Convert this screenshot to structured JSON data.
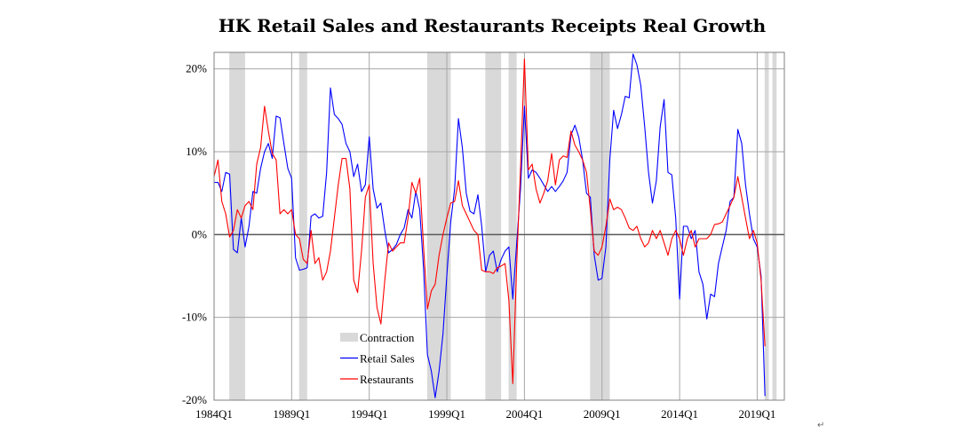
{
  "chart_data": {
    "type": "line",
    "title": "HK Retail Sales and Restaurants Receipts Real Growth",
    "xlabel": "",
    "ylabel": "",
    "x_tick_labels": [
      "1984Q1",
      "1989Q1",
      "1994Q1",
      "1999Q1",
      "2004Q1",
      "2009Q1",
      "2014Q1",
      "2019Q1"
    ],
    "y_tick_labels": [
      "20%",
      "10%",
      "0%",
      "-10%",
      "-20%"
    ],
    "ylim": [
      -20,
      22
    ],
    "grid": true,
    "legend_position": "bottom-left",
    "contraction_label": "Contraction",
    "contraction_periods": [
      [
        "1985Q1",
        "1985Q4"
      ],
      [
        "1989Q3",
        "1989Q4"
      ],
      [
        "1997Q4",
        "1999Q1"
      ],
      [
        "2001Q3",
        "2002Q2"
      ],
      [
        "2003Q1",
        "2003Q2"
      ],
      [
        "2008Q2",
        "2009Q2"
      ],
      [
        "2019Q3",
        "2019Q3"
      ],
      [
        "2020Q1",
        "2020Q1"
      ]
    ],
    "series": [
      {
        "name": "Retail Sales",
        "color": "#0000ff",
        "points": [
          [
            "1984Q1",
            6.3
          ],
          [
            "1984Q2",
            6.3
          ],
          [
            "1984Q3",
            5.2
          ],
          [
            "1984Q4",
            7.5
          ],
          [
            "1985Q1",
            7.3
          ],
          [
            "1985Q2",
            -1.8
          ],
          [
            "1985Q3",
            -2.2
          ],
          [
            "1985Q4",
            2.0
          ],
          [
            "1986Q1",
            -1.5
          ],
          [
            "1986Q2",
            1.0
          ],
          [
            "1986Q3",
            5.2
          ],
          [
            "1986Q4",
            5.0
          ],
          [
            "1987Q1",
            8.0
          ],
          [
            "1987Q2",
            10.0
          ],
          [
            "1987Q3",
            11.0
          ],
          [
            "1987Q4",
            9.2
          ],
          [
            "1988Q1",
            14.3
          ],
          [
            "1988Q2",
            14.1
          ],
          [
            "1988Q3",
            11.0
          ],
          [
            "1988Q4",
            8.0
          ],
          [
            "1989Q1",
            6.8
          ],
          [
            "1989Q2",
            -2.8
          ],
          [
            "1989Q3",
            -4.3
          ],
          [
            "1989Q4",
            -4.2
          ],
          [
            "1990Q1",
            -4.0
          ],
          [
            "1990Q2",
            2.2
          ],
          [
            "1990Q3",
            2.5
          ],
          [
            "1990Q4",
            2.0
          ],
          [
            "1991Q1",
            2.2
          ],
          [
            "1991Q2",
            7.5
          ],
          [
            "1991Q3",
            17.7
          ],
          [
            "1991Q4",
            14.5
          ],
          [
            "1992Q1",
            14.0
          ],
          [
            "1992Q2",
            13.3
          ],
          [
            "1992Q3",
            11.0
          ],
          [
            "1992Q4",
            10.0
          ],
          [
            "1993Q1",
            7.0
          ],
          [
            "1993Q2",
            8.5
          ],
          [
            "1993Q3",
            5.2
          ],
          [
            "1993Q4",
            6.0
          ],
          [
            "1994Q1",
            11.8
          ],
          [
            "1994Q2",
            5.5
          ],
          [
            "1994Q3",
            3.2
          ],
          [
            "1994Q4",
            3.8
          ],
          [
            "1995Q1",
            0.5
          ],
          [
            "1995Q2",
            -2.2
          ],
          [
            "1995Q3",
            -1.8
          ],
          [
            "1995Q4",
            -1.2
          ],
          [
            "1996Q1",
            0.0
          ],
          [
            "1996Q2",
            0.8
          ],
          [
            "1996Q3",
            3.0
          ],
          [
            "1996Q4",
            2.0
          ],
          [
            "1997Q1",
            5.2
          ],
          [
            "1997Q2",
            3.0
          ],
          [
            "1997Q3",
            -4.0
          ],
          [
            "1997Q4",
            -14.5
          ],
          [
            "1998Q1",
            -16.5
          ],
          [
            "1998Q2",
            -19.7
          ],
          [
            "1998Q3",
            -16.5
          ],
          [
            "1998Q4",
            -12.0
          ],
          [
            "1999Q1",
            -5.0
          ],
          [
            "1999Q2",
            1.5
          ],
          [
            "1999Q3",
            5.5
          ],
          [
            "1999Q4",
            14.0
          ],
          [
            "2000Q1",
            10.5
          ],
          [
            "2000Q2",
            5.0
          ],
          [
            "2000Q3",
            2.8
          ],
          [
            "2000Q4",
            2.5
          ],
          [
            "2001Q1",
            4.8
          ],
          [
            "2001Q2",
            1.0
          ],
          [
            "2001Q3",
            -4.5
          ],
          [
            "2001Q4",
            -2.5
          ],
          [
            "2002Q1",
            -2.0
          ],
          [
            "2002Q2",
            -4.5
          ],
          [
            "2002Q3",
            -3.0
          ],
          [
            "2002Q4",
            -2.0
          ],
          [
            "2003Q1",
            -1.5
          ],
          [
            "2003Q2",
            -7.8
          ],
          [
            "2003Q3",
            -1.0
          ],
          [
            "2003Q4",
            5.5
          ],
          [
            "2004Q1",
            15.5
          ],
          [
            "2004Q2",
            6.8
          ],
          [
            "2004Q3",
            7.8
          ],
          [
            "2004Q4",
            7.5
          ],
          [
            "2005Q1",
            6.8
          ],
          [
            "2005Q2",
            6.0
          ],
          [
            "2005Q3",
            5.2
          ],
          [
            "2005Q4",
            5.8
          ],
          [
            "2006Q1",
            5.2
          ],
          [
            "2006Q2",
            5.8
          ],
          [
            "2006Q3",
            6.5
          ],
          [
            "2006Q4",
            7.5
          ],
          [
            "2007Q1",
            12.0
          ],
          [
            "2007Q2",
            13.2
          ],
          [
            "2007Q3",
            11.8
          ],
          [
            "2007Q4",
            9.0
          ],
          [
            "2008Q1",
            5.0
          ],
          [
            "2008Q2",
            4.5
          ],
          [
            "2008Q3",
            -2.5
          ],
          [
            "2008Q4",
            -5.5
          ],
          [
            "2009Q1",
            -5.3
          ],
          [
            "2009Q2",
            -1.5
          ],
          [
            "2009Q3",
            9.0
          ],
          [
            "2009Q4",
            15.0
          ],
          [
            "2010Q1",
            12.8
          ],
          [
            "2010Q2",
            14.5
          ],
          [
            "2010Q3",
            16.7
          ],
          [
            "2010Q4",
            16.5
          ],
          [
            "2011Q1",
            21.8
          ],
          [
            "2011Q2",
            20.5
          ],
          [
            "2011Q3",
            18.0
          ],
          [
            "2011Q4",
            13.0
          ],
          [
            "2012Q1",
            7.5
          ],
          [
            "2012Q2",
            3.8
          ],
          [
            "2012Q3",
            6.5
          ],
          [
            "2012Q4",
            13.0
          ],
          [
            "2013Q1",
            16.3
          ],
          [
            "2013Q2",
            7.5
          ],
          [
            "2013Q3",
            7.2
          ],
          [
            "2013Q4",
            2.0
          ],
          [
            "2014Q1",
            -7.8
          ],
          [
            "2014Q2",
            1.0
          ],
          [
            "2014Q3",
            1.0
          ],
          [
            "2014Q4",
            -0.5
          ],
          [
            "2015Q1",
            0.5
          ],
          [
            "2015Q2",
            -4.5
          ],
          [
            "2015Q3",
            -6.0
          ],
          [
            "2015Q4",
            -10.2
          ],
          [
            "2016Q1",
            -7.2
          ],
          [
            "2016Q2",
            -7.5
          ],
          [
            "2016Q3",
            -3.5
          ],
          [
            "2016Q4",
            -1.5
          ],
          [
            "2017Q1",
            0.5
          ],
          [
            "2017Q2",
            4.0
          ],
          [
            "2017Q3",
            4.5
          ],
          [
            "2017Q4",
            12.7
          ],
          [
            "2018Q1",
            11.0
          ],
          [
            "2018Q2",
            6.0
          ],
          [
            "2018Q3",
            2.5
          ],
          [
            "2018Q4",
            -0.5
          ],
          [
            "2019Q1",
            -1.5
          ],
          [
            "2019Q2",
            -5.0
          ],
          [
            "2019Q3",
            -19.5
          ]
        ]
      },
      {
        "name": "Restaurants",
        "color": "#ff0000",
        "points": [
          [
            "1984Q1",
            7.0
          ],
          [
            "1984Q2",
            9.0
          ],
          [
            "1984Q3",
            4.0
          ],
          [
            "1984Q4",
            2.5
          ],
          [
            "1985Q1",
            -0.3
          ],
          [
            "1985Q2",
            0.5
          ],
          [
            "1985Q3",
            3.0
          ],
          [
            "1985Q4",
            2.0
          ],
          [
            "1986Q1",
            3.5
          ],
          [
            "1986Q2",
            4.0
          ],
          [
            "1986Q3",
            3.0
          ],
          [
            "1986Q4",
            8.5
          ],
          [
            "1987Q1",
            10.5
          ],
          [
            "1987Q2",
            15.5
          ],
          [
            "1987Q3",
            12.5
          ],
          [
            "1987Q4",
            9.8
          ],
          [
            "1988Q1",
            9.0
          ],
          [
            "1988Q2",
            2.5
          ],
          [
            "1988Q3",
            3.0
          ],
          [
            "1988Q4",
            2.5
          ],
          [
            "1989Q1",
            3.0
          ],
          [
            "1989Q2",
            0.0
          ],
          [
            "1989Q3",
            -0.5
          ],
          [
            "1989Q4",
            -3.0
          ],
          [
            "1990Q1",
            -3.5
          ],
          [
            "1990Q2",
            0.5
          ],
          [
            "1990Q3",
            -3.5
          ],
          [
            "1990Q4",
            -2.8
          ],
          [
            "1991Q1",
            -5.5
          ],
          [
            "1991Q2",
            -4.5
          ],
          [
            "1991Q3",
            -2.0
          ],
          [
            "1991Q4",
            2.0
          ],
          [
            "1992Q1",
            6.0
          ],
          [
            "1992Q2",
            9.2
          ],
          [
            "1992Q3",
            9.2
          ],
          [
            "1992Q4",
            5.5
          ],
          [
            "1993Q1",
            -5.5
          ],
          [
            "1993Q2",
            -7.0
          ],
          [
            "1993Q3",
            -2.0
          ],
          [
            "1993Q4",
            4.5
          ],
          [
            "1994Q1",
            6.0
          ],
          [
            "1994Q2",
            -3.5
          ],
          [
            "1994Q3",
            -8.8
          ],
          [
            "1994Q4",
            -10.8
          ],
          [
            "1995Q1",
            -5.5
          ],
          [
            "1995Q2",
            -1.0
          ],
          [
            "1995Q3",
            -2.0
          ],
          [
            "1995Q4",
            -1.5
          ],
          [
            "1996Q1",
            -1.0
          ],
          [
            "1996Q2",
            -1.0
          ],
          [
            "1996Q3",
            2.0
          ],
          [
            "1996Q4",
            6.3
          ],
          [
            "1997Q1",
            5.0
          ],
          [
            "1997Q2",
            6.8
          ],
          [
            "1997Q3",
            -1.5
          ],
          [
            "1997Q4",
            -9.0
          ],
          [
            "1998Q1",
            -6.8
          ],
          [
            "1998Q2",
            -6.0
          ],
          [
            "1998Q3",
            -2.5
          ],
          [
            "1998Q4",
            0.0
          ],
          [
            "1999Q1",
            2.0
          ],
          [
            "1999Q2",
            3.8
          ],
          [
            "1999Q3",
            4.0
          ],
          [
            "1999Q4",
            6.5
          ],
          [
            "2000Q1",
            3.5
          ],
          [
            "2000Q2",
            2.5
          ],
          [
            "2000Q3",
            1.5
          ],
          [
            "2000Q4",
            0.5
          ],
          [
            "2001Q1",
            0.0
          ],
          [
            "2001Q2",
            -4.3
          ],
          [
            "2001Q3",
            -4.5
          ],
          [
            "2001Q4",
            -4.5
          ],
          [
            "2002Q1",
            -4.7
          ],
          [
            "2002Q2",
            -4.0
          ],
          [
            "2002Q3",
            -3.8
          ],
          [
            "2002Q4",
            -3.5
          ],
          [
            "2003Q1",
            -8.0
          ],
          [
            "2003Q2",
            -18.0
          ],
          [
            "2003Q3",
            -3.5
          ],
          [
            "2003Q4",
            8.0
          ],
          [
            "2004Q1",
            21.2
          ],
          [
            "2004Q2",
            7.8
          ],
          [
            "2004Q3",
            8.5
          ],
          [
            "2004Q4",
            5.5
          ],
          [
            "2005Q1",
            3.8
          ],
          [
            "2005Q2",
            5.0
          ],
          [
            "2005Q3",
            6.5
          ],
          [
            "2005Q4",
            9.8
          ],
          [
            "2006Q1",
            6.0
          ],
          [
            "2006Q2",
            9.0
          ],
          [
            "2006Q3",
            9.5
          ],
          [
            "2006Q4",
            9.3
          ],
          [
            "2007Q1",
            12.5
          ],
          [
            "2007Q2",
            10.8
          ],
          [
            "2007Q3",
            10.0
          ],
          [
            "2007Q4",
            9.0
          ],
          [
            "2008Q1",
            7.5
          ],
          [
            "2008Q2",
            3.0
          ],
          [
            "2008Q3",
            -2.0
          ],
          [
            "2008Q4",
            -2.5
          ],
          [
            "2009Q1",
            -1.5
          ],
          [
            "2009Q2",
            1.0
          ],
          [
            "2009Q3",
            4.3
          ],
          [
            "2009Q4",
            3.0
          ],
          [
            "2010Q1",
            3.3
          ],
          [
            "2010Q2",
            3.0
          ],
          [
            "2010Q3",
            2.0
          ],
          [
            "2010Q4",
            0.8
          ],
          [
            "2011Q1",
            0.5
          ],
          [
            "2011Q2",
            1.0
          ],
          [
            "2011Q3",
            -0.5
          ],
          [
            "2011Q4",
            -1.5
          ],
          [
            "2012Q1",
            -1.0
          ],
          [
            "2012Q2",
            0.5
          ],
          [
            "2012Q3",
            -0.5
          ],
          [
            "2012Q4",
            0.5
          ],
          [
            "2013Q1",
            -1.0
          ],
          [
            "2013Q2",
            -2.5
          ],
          [
            "2013Q3",
            -0.5
          ],
          [
            "2013Q4",
            0.5
          ],
          [
            "2014Q1",
            -0.5
          ],
          [
            "2014Q2",
            -2.5
          ],
          [
            "2014Q3",
            -0.5
          ],
          [
            "2014Q4",
            0.5
          ],
          [
            "2015Q1",
            -1.5
          ],
          [
            "2015Q2",
            -0.5
          ],
          [
            "2015Q3",
            -0.5
          ],
          [
            "2015Q4",
            -0.5
          ],
          [
            "2016Q1",
            0.0
          ],
          [
            "2016Q2",
            1.2
          ],
          [
            "2016Q3",
            1.3
          ],
          [
            "2016Q4",
            1.5
          ],
          [
            "2017Q1",
            2.5
          ],
          [
            "2017Q2",
            3.5
          ],
          [
            "2017Q3",
            4.5
          ],
          [
            "2017Q4",
            7.0
          ],
          [
            "2018Q1",
            4.5
          ],
          [
            "2018Q2",
            2.0
          ],
          [
            "2018Q3",
            -0.5
          ],
          [
            "2018Q4",
            0.5
          ],
          [
            "2019Q1",
            -1.0
          ],
          [
            "2019Q2",
            -5.5
          ],
          [
            "2019Q3",
            -13.5
          ]
        ]
      }
    ]
  },
  "page_marks": {
    "return_symbol": "↵"
  }
}
